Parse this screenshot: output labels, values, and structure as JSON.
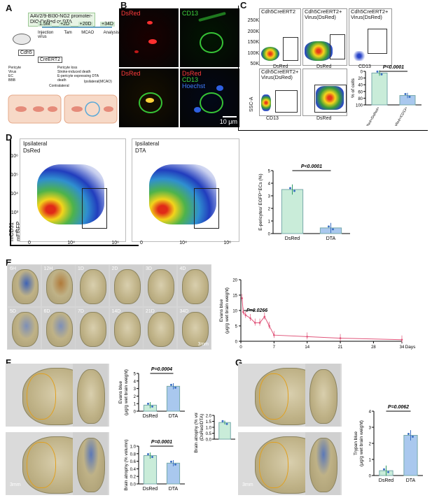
{
  "panels": {
    "a": "A",
    "b": "B",
    "c": "C",
    "d": "D",
    "e": "E",
    "f": "F",
    "g": "G"
  },
  "A": {
    "virus_text": "AAV2/9-BI30-NG2 promoter-DIO-DsRed or DTA",
    "steps": [
      "1.5M",
      "+2D",
      "+20D",
      "+34D"
    ],
    "events": [
      "Injection virus",
      "Tam",
      "MCAO",
      "Analysis"
    ],
    "mouse_top": "Cdh5",
    "mouse_bottom": "CreERT2",
    "contralateral": "Contralateral",
    "ipsilateral": "Ipsilateral(MCAO)",
    "legend": [
      "Pericyte",
      "Virus",
      "EC",
      "BBB",
      "Pericyte loss",
      "Stroke-induced death",
      "E-pericyte expressing DTA",
      "death"
    ]
  },
  "B": {
    "dsred": "DsRed",
    "cd13": "CD13",
    "merge_dsred": "DsRed",
    "merge_cd13": "CD13",
    "merge_hoechst": "Hoechst",
    "scale": "10 μm"
  },
  "C": {
    "plot1": "Cdh5CreERT2",
    "plot2": "Cdh5CreERT2+ Virus(DsRed)",
    "plot3": "Cdh5CreERT2+ Virus(DsRed)",
    "plot4": "Cdh5CreERT2+ Virus(DsRed)",
    "xaxis_dsred": "DsRed",
    "xaxis_cd13": "CD13",
    "yaxis_ssc": "SSC-A",
    "yticks": [
      "250K",
      "200K",
      "150K",
      "100K",
      "50K",
      "0"
    ],
    "bar_pvalue": "P<0.0001",
    "bar_ylabel": "% of cells",
    "bar_yticks": [
      "100",
      "80",
      "60",
      "40",
      "20",
      "0"
    ],
    "bar_labels": [
      "CD13+DsRed+/DsRed+",
      "CD13-DsRed+/CD13+"
    ]
  },
  "D": {
    "left_title_1": "Ipsilateral",
    "left_title_2": "DsRed",
    "right_title_1": "Ipsilateral",
    "right_title_2": "DTA",
    "ylabel_1": "mCD31",
    "ylabel_2": "mEGFP",
    "yticks": [
      "10⁶",
      "10⁵",
      "10⁴",
      "10³",
      "0"
    ],
    "xticks": [
      "0",
      "10⁴",
      "10⁶"
    ],
    "bar_pvalue": "P<0.0001",
    "bar_ylabel": "E-pericytes/ EGFP⁺ECs (%)",
    "bar_categories": [
      "DsRed",
      "DTA"
    ]
  },
  "E": {
    "labels_row1": [
      "6H",
      "12H",
      "1D",
      "2D",
      "3D",
      "4D"
    ],
    "labels_row2": [
      "5D",
      "6D",
      "7D",
      "14D",
      "21D",
      "34D"
    ],
    "scale": "3mm",
    "pvalue": "P=0.0266",
    "ylabel_1": "Evans blue",
    "ylabel_2": "(μg/g wet brain weight)",
    "xlabel": "Days",
    "yticks": [
      "20",
      "15",
      "10",
      "5",
      "0"
    ],
    "xticks": [
      "0",
      "7",
      "14",
      "21",
      "28",
      "34"
    ]
  },
  "F": {
    "scale": "3mm",
    "evans_pvalue": "P=0.0004",
    "evans_ylabel_1": "Evans blue",
    "evans_ylabel_2": "(μg/g wet brain weight)",
    "evans_yticks": [
      "5",
      "4",
      "3",
      "2",
      "1",
      "0"
    ],
    "atrophy_pvalue": "P=0.0001",
    "atrophy_ylabel": "Brain atrophy (% volumn)",
    "atrophy_yticks": [
      "1.0",
      "0.8",
      "0.6",
      "0.4",
      "0.2",
      "0.0"
    ],
    "ratio_ylabel_1": "Brain atrophy (% volumn)",
    "ratio_ylabel_2": "(DsRed/DTA)",
    "ratio_yticks": [
      "2.0",
      "1.5",
      "1.0",
      "0.5",
      "0.0"
    ],
    "categories": [
      "DsRed",
      "DTA"
    ]
  },
  "G": {
    "scale": "3mm",
    "pvalue": "P=0.0062",
    "ylabel_1": "Trypan blue",
    "ylabel_2": "(μg/g wet brain weight)",
    "yticks": [
      "4",
      "3",
      "2",
      "1",
      "0"
    ],
    "categories": [
      "DsRed",
      "DTA"
    ]
  },
  "colors": {
    "bar_green": "#c9ecd9",
    "bar_blue": "#a9c8ee",
    "accent_pink": "#e0557a",
    "accent_green": "#2f9a63"
  },
  "chart_data": [
    {
      "type": "bar",
      "title": "",
      "categories": [
        "DsRed",
        "DTA"
      ],
      "values": [
        3.5,
        0.45
      ],
      "ylabel": "E-pericytes/ EGFP⁺ECs (%)",
      "ylim": [
        0,
        5
      ],
      "annotation": "P<0.0001"
    },
    {
      "type": "line",
      "xlabel": "Days",
      "ylabel": "Evans blue (μg/g wet brain weight)",
      "x": [
        0.25,
        0.5,
        1,
        2,
        3,
        4,
        5,
        6,
        7,
        14,
        21,
        34
      ],
      "y": [
        14,
        9.5,
        8.5,
        7.5,
        6,
        6,
        8,
        5,
        2,
        1.5,
        1,
        0.5
      ],
      "xlim": [
        0,
        34
      ],
      "ylim": [
        0,
        20
      ],
      "annotation": "P=0.0266"
    },
    {
      "type": "bar",
      "categories": [
        "DsRed",
        "DTA"
      ],
      "values": [
        0.8,
        3.3
      ],
      "ylabel": "Evans blue (μg/g wet brain weight)",
      "ylim": [
        0,
        5
      ],
      "annotation": "P=0.0004"
    },
    {
      "type": "bar",
      "categories": [
        "DsRed",
        "DTA"
      ],
      "values": [
        0.75,
        0.55
      ],
      "ylabel": "Brain atrophy (% volumn)",
      "ylim": [
        0,
        1.0
      ],
      "annotation": "P=0.0001"
    },
    {
      "type": "bar",
      "categories": [
        ""
      ],
      "values": [
        1.4
      ],
      "ylabel": "Brain atrophy (% volumn) (DsRed/DTA)",
      "ylim": [
        0,
        2.0
      ]
    },
    {
      "type": "bar",
      "categories": [
        "DsRed",
        "DTA"
      ],
      "values": [
        0.3,
        2.5
      ],
      "ylabel": "Trypan blue (μg/g wet brain weight)",
      "ylim": [
        0,
        4
      ],
      "annotation": "P=0.0062"
    },
    {
      "type": "bar",
      "categories": [
        "CD13+DsRed+/DsRed+",
        "CD13-DsRed+/CD13+"
      ],
      "values": [
        95,
        28
      ],
      "ylabel": "% of cells",
      "ylim": [
        0,
        100
      ],
      "annotation": "P<0.0001"
    }
  ]
}
